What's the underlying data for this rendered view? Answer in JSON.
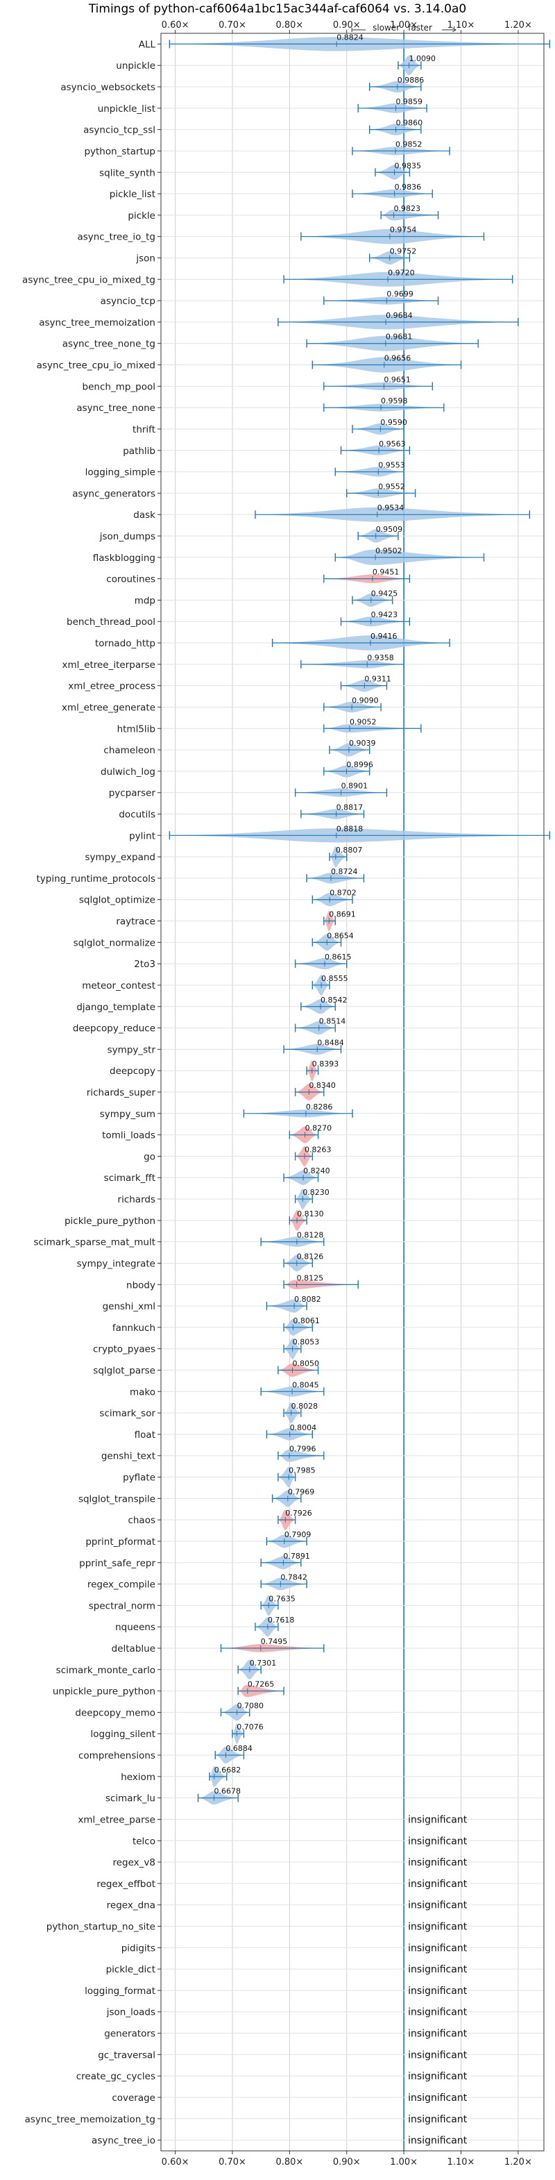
{
  "chart_data": {
    "type": "violin",
    "title": "Timings of python-caf6064a1bc15ac344af-caf6064 vs. 3.14.0a0",
    "direction_labels": {
      "slower": "slower",
      "faster": "faster"
    },
    "insignificant_label": "insignificant",
    "xlim": [
      0.575,
      1.245
    ],
    "xticks": [
      0.6,
      0.7,
      0.8,
      0.9,
      1.0,
      1.1,
      1.2
    ],
    "xtick_labels": [
      "0.60×",
      "0.70×",
      "0.80×",
      "0.90×",
      "1.00×",
      "1.10×",
      "1.20×"
    ],
    "reference": 1.0,
    "colors": {
      "faster": "#a8c8e8",
      "slower": "#f4a6a6",
      "whisker": "#1f77b4",
      "grid": "#d0d0d0",
      "reference": "#1f77b4"
    },
    "benchmarks": [
      {
        "name": "ALL",
        "value": 0.8824,
        "low": 0.59,
        "high": 1.255,
        "slower": false
      },
      {
        "name": "unpickle",
        "value": 1.009,
        "low": 0.99,
        "high": 1.03,
        "slower": false
      },
      {
        "name": "asyncio_websockets",
        "value": 0.9886,
        "low": 0.94,
        "high": 1.03,
        "slower": false
      },
      {
        "name": "unpickle_list",
        "value": 0.9859,
        "low": 0.92,
        "high": 1.04,
        "slower": false
      },
      {
        "name": "asyncio_tcp_ssl",
        "value": 0.986,
        "low": 0.94,
        "high": 1.03,
        "slower": false
      },
      {
        "name": "python_startup",
        "value": 0.9852,
        "low": 0.91,
        "high": 1.08,
        "slower": false
      },
      {
        "name": "sqlite_synth",
        "value": 0.9835,
        "low": 0.95,
        "high": 1.01,
        "slower": false
      },
      {
        "name": "pickle_list",
        "value": 0.9836,
        "low": 0.91,
        "high": 1.05,
        "slower": false
      },
      {
        "name": "pickle",
        "value": 0.9823,
        "low": 0.96,
        "high": 1.06,
        "slower": false
      },
      {
        "name": "async_tree_io_tg",
        "value": 0.9754,
        "low": 0.82,
        "high": 1.14,
        "slower": false
      },
      {
        "name": "json",
        "value": 0.9752,
        "low": 0.94,
        "high": 1.01,
        "slower": false
      },
      {
        "name": "async_tree_cpu_io_mixed_tg",
        "value": 0.972,
        "low": 0.79,
        "high": 1.19,
        "slower": false
      },
      {
        "name": "asyncio_tcp",
        "value": 0.9699,
        "low": 0.86,
        "high": 1.06,
        "slower": false
      },
      {
        "name": "async_tree_memoization",
        "value": 0.9684,
        "low": 0.78,
        "high": 1.2,
        "slower": false
      },
      {
        "name": "async_tree_none_tg",
        "value": 0.9681,
        "low": 0.83,
        "high": 1.13,
        "slower": false
      },
      {
        "name": "async_tree_cpu_io_mixed",
        "value": 0.9656,
        "low": 0.84,
        "high": 1.1,
        "slower": false
      },
      {
        "name": "bench_mp_pool",
        "value": 0.9651,
        "low": 0.86,
        "high": 1.05,
        "slower": false
      },
      {
        "name": "async_tree_none",
        "value": 0.9598,
        "low": 0.86,
        "high": 1.07,
        "slower": false
      },
      {
        "name": "thrift",
        "value": 0.959,
        "low": 0.91,
        "high": 1.0,
        "slower": false
      },
      {
        "name": "pathlib",
        "value": 0.9563,
        "low": 0.89,
        "high": 1.01,
        "slower": false
      },
      {
        "name": "logging_simple",
        "value": 0.9553,
        "low": 0.88,
        "high": 1.0,
        "slower": false
      },
      {
        "name": "async_generators",
        "value": 0.9552,
        "low": 0.9,
        "high": 1.02,
        "slower": false
      },
      {
        "name": "dask",
        "value": 0.9534,
        "low": 0.74,
        "high": 1.22,
        "slower": false
      },
      {
        "name": "json_dumps",
        "value": 0.9509,
        "low": 0.92,
        "high": 0.99,
        "slower": false
      },
      {
        "name": "flaskblogging",
        "value": 0.9502,
        "low": 0.88,
        "high": 1.14,
        "slower": false
      },
      {
        "name": "coroutines",
        "value": 0.9451,
        "low": 0.86,
        "high": 1.01,
        "slower": true
      },
      {
        "name": "mdp",
        "value": 0.9425,
        "low": 0.91,
        "high": 0.98,
        "slower": false
      },
      {
        "name": "bench_thread_pool",
        "value": 0.9423,
        "low": 0.89,
        "high": 1.01,
        "slower": false
      },
      {
        "name": "tornado_http",
        "value": 0.9416,
        "low": 0.77,
        "high": 1.08,
        "slower": false
      },
      {
        "name": "xml_etree_iterparse",
        "value": 0.9358,
        "low": 0.82,
        "high": 1.0,
        "slower": false
      },
      {
        "name": "xml_etree_process",
        "value": 0.9311,
        "low": 0.89,
        "high": 0.97,
        "slower": false
      },
      {
        "name": "xml_etree_generate",
        "value": 0.909,
        "low": 0.86,
        "high": 0.96,
        "slower": false
      },
      {
        "name": "html5lib",
        "value": 0.9052,
        "low": 0.86,
        "high": 1.03,
        "slower": false
      },
      {
        "name": "chameleon",
        "value": 0.9039,
        "low": 0.87,
        "high": 0.94,
        "slower": false
      },
      {
        "name": "dulwich_log",
        "value": 0.8996,
        "low": 0.86,
        "high": 0.94,
        "slower": false
      },
      {
        "name": "pycparser",
        "value": 0.8901,
        "low": 0.81,
        "high": 0.97,
        "slower": false
      },
      {
        "name": "docutils",
        "value": 0.8817,
        "low": 0.82,
        "high": 0.93,
        "slower": false
      },
      {
        "name": "pylint",
        "value": 0.8818,
        "low": 0.59,
        "high": 1.255,
        "slower": false
      },
      {
        "name": "sympy_expand",
        "value": 0.8807,
        "low": 0.87,
        "high": 0.9,
        "slower": false
      },
      {
        "name": "typing_runtime_protocols",
        "value": 0.8724,
        "low": 0.83,
        "high": 0.93,
        "slower": false
      },
      {
        "name": "sqlglot_optimize",
        "value": 0.8702,
        "low": 0.84,
        "high": 0.91,
        "slower": false
      },
      {
        "name": "raytrace",
        "value": 0.8691,
        "low": 0.86,
        "high": 0.88,
        "slower": true
      },
      {
        "name": "sqlglot_normalize",
        "value": 0.8654,
        "low": 0.84,
        "high": 0.89,
        "slower": false
      },
      {
        "name": "2to3",
        "value": 0.8615,
        "low": 0.81,
        "high": 0.9,
        "slower": false
      },
      {
        "name": "meteor_contest",
        "value": 0.8555,
        "low": 0.84,
        "high": 0.87,
        "slower": false
      },
      {
        "name": "django_template",
        "value": 0.8542,
        "low": 0.82,
        "high": 0.88,
        "slower": false
      },
      {
        "name": "deepcopy_reduce",
        "value": 0.8514,
        "low": 0.81,
        "high": 0.88,
        "slower": false
      },
      {
        "name": "sympy_str",
        "value": 0.8484,
        "low": 0.79,
        "high": 0.89,
        "slower": false
      },
      {
        "name": "deepcopy",
        "value": 0.8393,
        "low": 0.83,
        "high": 0.85,
        "slower": true
      },
      {
        "name": "richards_super",
        "value": 0.834,
        "low": 0.81,
        "high": 0.86,
        "slower": true
      },
      {
        "name": "sympy_sum",
        "value": 0.8286,
        "low": 0.72,
        "high": 0.91,
        "slower": false
      },
      {
        "name": "tomli_loads",
        "value": 0.827,
        "low": 0.8,
        "high": 0.85,
        "slower": true
      },
      {
        "name": "go",
        "value": 0.8263,
        "low": 0.81,
        "high": 0.84,
        "slower": true
      },
      {
        "name": "scimark_fft",
        "value": 0.824,
        "low": 0.79,
        "high": 0.85,
        "slower": false
      },
      {
        "name": "richards",
        "value": 0.823,
        "low": 0.81,
        "high": 0.84,
        "slower": false
      },
      {
        "name": "pickle_pure_python",
        "value": 0.813,
        "low": 0.8,
        "high": 0.83,
        "slower": true
      },
      {
        "name": "scimark_sparse_mat_mult",
        "value": 0.8128,
        "low": 0.75,
        "high": 0.86,
        "slower": false
      },
      {
        "name": "sympy_integrate",
        "value": 0.8126,
        "low": 0.79,
        "high": 0.84,
        "slower": false
      },
      {
        "name": "nbody",
        "value": 0.8125,
        "low": 0.79,
        "high": 0.92,
        "slower": true
      },
      {
        "name": "genshi_xml",
        "value": 0.8082,
        "low": 0.76,
        "high": 0.83,
        "slower": false
      },
      {
        "name": "fannkuch",
        "value": 0.8061,
        "low": 0.79,
        "high": 0.84,
        "slower": false
      },
      {
        "name": "crypto_pyaes",
        "value": 0.8053,
        "low": 0.79,
        "high": 0.82,
        "slower": false
      },
      {
        "name": "sqlglot_parse",
        "value": 0.805,
        "low": 0.78,
        "high": 0.85,
        "slower": true
      },
      {
        "name": "mako",
        "value": 0.8045,
        "low": 0.75,
        "high": 0.86,
        "slower": false
      },
      {
        "name": "scimark_sor",
        "value": 0.8028,
        "low": 0.79,
        "high": 0.82,
        "slower": false
      },
      {
        "name": "float",
        "value": 0.8004,
        "low": 0.76,
        "high": 0.84,
        "slower": false
      },
      {
        "name": "genshi_text",
        "value": 0.7996,
        "low": 0.78,
        "high": 0.86,
        "slower": false
      },
      {
        "name": "pyflate",
        "value": 0.7985,
        "low": 0.78,
        "high": 0.81,
        "slower": false
      },
      {
        "name": "sqlglot_transpile",
        "value": 0.7969,
        "low": 0.77,
        "high": 0.82,
        "slower": false
      },
      {
        "name": "chaos",
        "value": 0.7926,
        "low": 0.78,
        "high": 0.81,
        "slower": true
      },
      {
        "name": "pprint_pformat",
        "value": 0.7909,
        "low": 0.76,
        "high": 0.83,
        "slower": false
      },
      {
        "name": "pprint_safe_repr",
        "value": 0.7891,
        "low": 0.75,
        "high": 0.82,
        "slower": false
      },
      {
        "name": "regex_compile",
        "value": 0.7842,
        "low": 0.75,
        "high": 0.83,
        "slower": false
      },
      {
        "name": "spectral_norm",
        "value": 0.7635,
        "low": 0.75,
        "high": 0.78,
        "slower": false
      },
      {
        "name": "nqueens",
        "value": 0.7618,
        "low": 0.74,
        "high": 0.78,
        "slower": false
      },
      {
        "name": "deltablue",
        "value": 0.7495,
        "low": 0.68,
        "high": 0.86,
        "slower": true
      },
      {
        "name": "scimark_monte_carlo",
        "value": 0.7301,
        "low": 0.71,
        "high": 0.75,
        "slower": false
      },
      {
        "name": "unpickle_pure_python",
        "value": 0.7265,
        "low": 0.71,
        "high": 0.79,
        "slower": true
      },
      {
        "name": "deepcopy_memo",
        "value": 0.708,
        "low": 0.68,
        "high": 0.73,
        "slower": false
      },
      {
        "name": "logging_silent",
        "value": 0.7076,
        "low": 0.7,
        "high": 0.72,
        "slower": false
      },
      {
        "name": "comprehensions",
        "value": 0.6884,
        "low": 0.67,
        "high": 0.72,
        "slower": false
      },
      {
        "name": "hexiom",
        "value": 0.6682,
        "low": 0.66,
        "high": 0.69,
        "slower": false
      },
      {
        "name": "scimark_lu",
        "value": 0.6678,
        "low": 0.64,
        "high": 0.71,
        "slower": false
      },
      {
        "name": "xml_etree_parse",
        "insignificant": true
      },
      {
        "name": "telco",
        "insignificant": true
      },
      {
        "name": "regex_v8",
        "insignificant": true
      },
      {
        "name": "regex_effbot",
        "insignificant": true
      },
      {
        "name": "regex_dna",
        "insignificant": true
      },
      {
        "name": "python_startup_no_site",
        "insignificant": true
      },
      {
        "name": "pidigits",
        "insignificant": true
      },
      {
        "name": "pickle_dict",
        "insignificant": true
      },
      {
        "name": "logging_format",
        "insignificant": true
      },
      {
        "name": "json_loads",
        "insignificant": true
      },
      {
        "name": "generators",
        "insignificant": true
      },
      {
        "name": "gc_traversal",
        "insignificant": true
      },
      {
        "name": "create_gc_cycles",
        "insignificant": true
      },
      {
        "name": "coverage",
        "insignificant": true
      },
      {
        "name": "async_tree_memoization_tg",
        "insignificant": true
      },
      {
        "name": "async_tree_io",
        "insignificant": true
      }
    ]
  }
}
